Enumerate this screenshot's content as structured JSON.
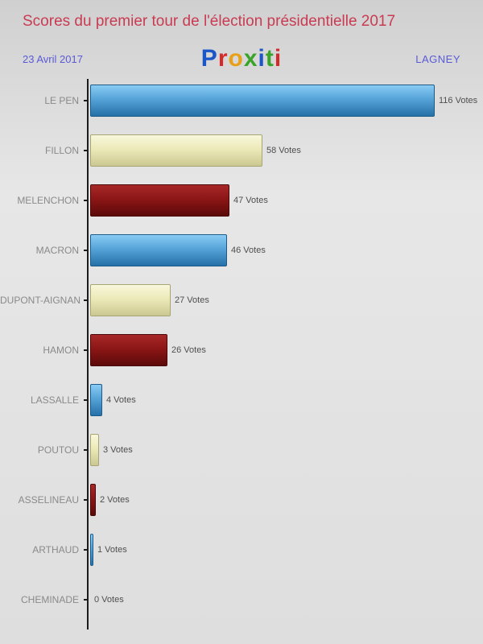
{
  "header": {
    "title": "Scores du premier tour de l'élection présidentielle 2017",
    "date": "23 Avril 2017",
    "location": "LAGNEY",
    "logo_letters": [
      {
        "ch": "P",
        "color": "#1a56c8"
      },
      {
        "ch": "r",
        "color": "#d42a2a"
      },
      {
        "ch": "o",
        "color": "#e8a018"
      },
      {
        "ch": "x",
        "color": "#3aa32a"
      },
      {
        "ch": "i",
        "color": "#1a56c8"
      },
      {
        "ch": "t",
        "color": "#3aa32a"
      },
      {
        "ch": "i",
        "color": "#d42a2a"
      }
    ]
  },
  "chart_data": {
    "type": "bar",
    "orientation": "horizontal",
    "title": "Scores du premier tour de l'élection présidentielle 2017",
    "categories": [
      "LE PEN",
      "FILLON",
      "MELENCHON",
      "MACRON",
      "DUPONT-AIGNAN",
      "HAMON",
      "LASSALLE",
      "POUTOU",
      "ASSELINEAU",
      "ARTHAUD",
      "CHEMINADE"
    ],
    "values": [
      116,
      58,
      47,
      46,
      27,
      26,
      4,
      3,
      2,
      1,
      0
    ],
    "value_labels": [
      "116 Votes",
      "58 Votes",
      "47 Votes",
      "46 Votes",
      "27 Votes",
      "26 Votes",
      "4 Votes",
      "3 Votes",
      "2 Votes",
      "1 Votes",
      "0 Votes"
    ],
    "xlim": [
      0,
      120
    ],
    "grid": false,
    "legend": false,
    "bar_color_keys": [
      "blue",
      "cream",
      "darkred",
      "blue",
      "cream",
      "darkred",
      "blue",
      "cream",
      "darkred",
      "blue",
      "cream"
    ],
    "palette": {
      "blue": {
        "top": "#8accf4",
        "mid": "#55a3d8",
        "bottom": "#2671a8",
        "border": "#1c5a88"
      },
      "cream": {
        "top": "#f8f7dc",
        "mid": "#eceab8",
        "bottom": "#cbc892",
        "border": "#a8a575"
      },
      "darkred": {
        "top": "#a82828",
        "mid": "#8c1616",
        "bottom": "#5c0a0a",
        "border": "#4a0808"
      }
    }
  },
  "colors": {
    "title": "#c93b52",
    "subtitle": "#5a5ad8",
    "category_label": "#8a8a8a",
    "value_label": "#4f4f4f",
    "axis": "#1c1c1c"
  }
}
